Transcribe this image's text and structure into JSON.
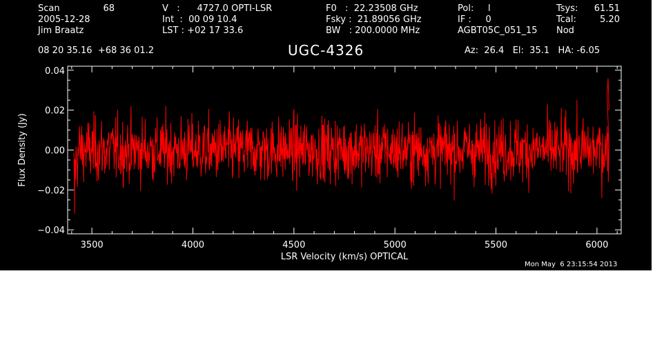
{
  "header": {
    "scan_label": "Scan",
    "scan_number": "68",
    "date": "2005-12-28",
    "observer": "Jim Braatz",
    "v_line": "V   :      4727.0 OPTI-LSR",
    "int_line": "Int  :  00 09 10.4",
    "lst_line": "LST : +02 17 33.6",
    "f0_line": "F0   :  22.23508 GHz",
    "fsky_line": "Fsky :  21.89056 GHz",
    "bw_line": "BW   : 200.0000 MHz",
    "pol_line": "Pol:     l",
    "if_line": "IF :     0",
    "project": "AGBT05C_051_15",
    "tsys_label": "Tsys:",
    "tsys_value": "61.51",
    "tcal_label": "Tcal:",
    "tcal_value": "5.20",
    "mode": "Nod",
    "coords": "08 20 35.16  +68 36 01.2",
    "source": "UGC-4326",
    "az_el_ha": "Az:  26.4   El:  35.1   HA: -6.05"
  },
  "timestamp": "Mon May  6 23:15:54 2013",
  "colors": {
    "background": "#000000",
    "axes": "#ffffff",
    "trace": "#ff0000"
  },
  "chart_data": {
    "type": "line",
    "xlabel": "LSR Velocity (km/s) OPTICAL",
    "ylabel": "Flux Density (Jy)",
    "xlim": [
      3380,
      6120
    ],
    "ylim": [
      -0.042,
      0.042
    ],
    "x_ticks": [
      3500,
      4000,
      4500,
      5000,
      5500,
      6000
    ],
    "x_tick_labels": [
      "3500",
      "4000",
      "4500",
      "5000",
      "5500",
      "6000"
    ],
    "y_ticks": [
      -0.04,
      -0.02,
      0.0,
      0.02,
      0.04
    ],
    "y_tick_labels": [
      "−0.04",
      "−0.02",
      "0.00",
      "0.02",
      "0.04"
    ],
    "grid": false,
    "series": [
      {
        "color": "#ff0000",
        "x_start": 3410,
        "x_end": 6060,
        "noise_rms_jy": 0.008,
        "min_jy": -0.032,
        "max_jy": 0.036,
        "end_spike": {
          "x": 6055,
          "y": 0.036
        },
        "start_dip": {
          "x": 3415,
          "y": -0.032
        }
      }
    ]
  }
}
